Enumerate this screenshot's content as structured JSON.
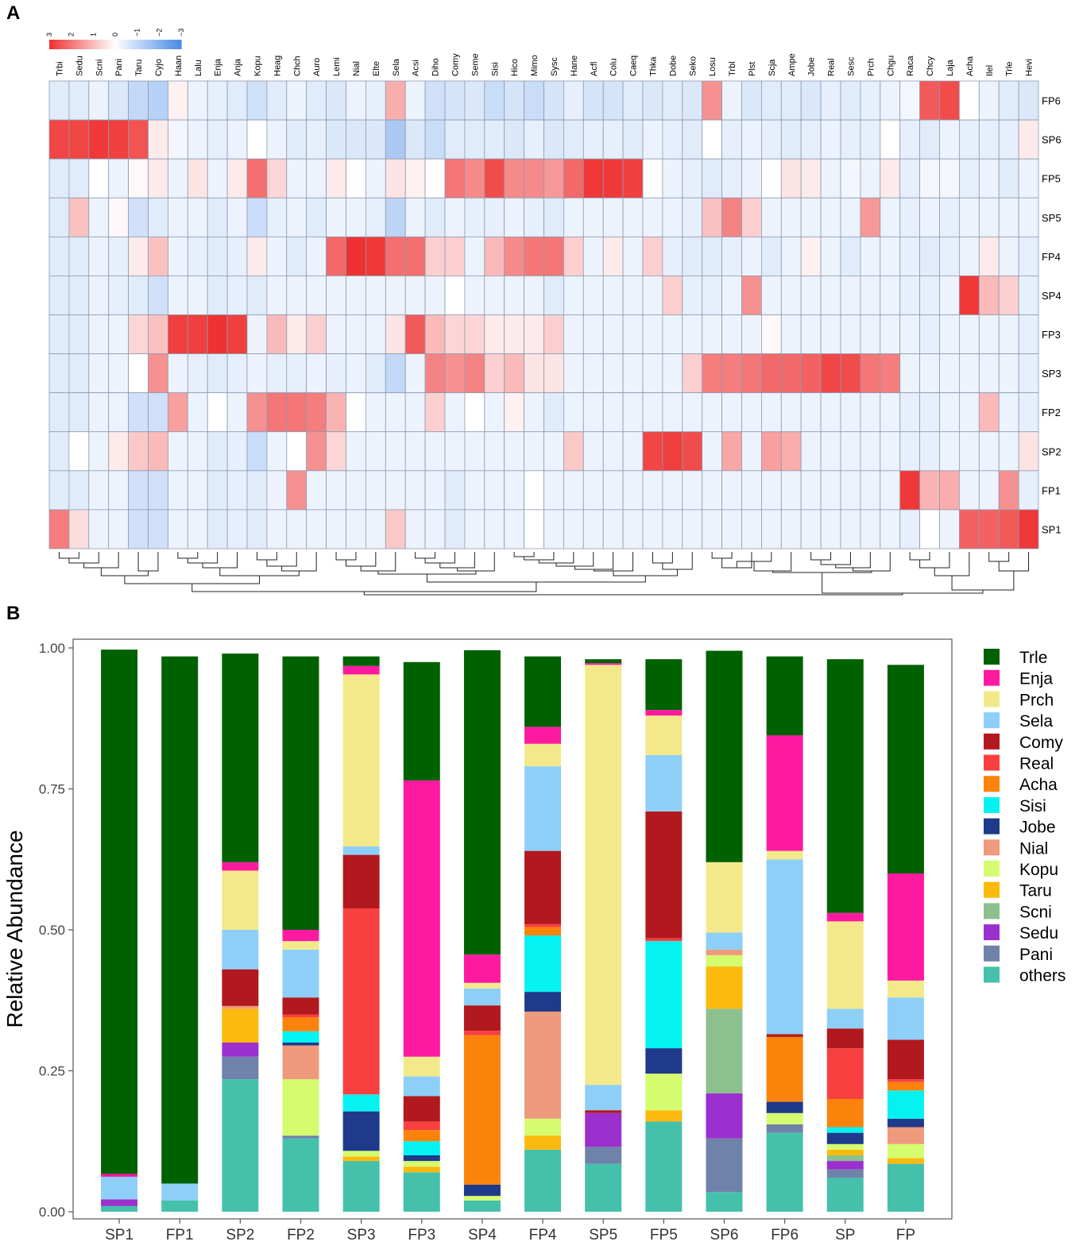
{
  "panels": {
    "a": "A",
    "b": "B"
  },
  "colors": {
    "heat_high": "#ef3131",
    "heat_mid": "#ffffff",
    "heat_low": "#4a8ae6",
    "grid": "#8e9ab0"
  },
  "chart_data": [
    {
      "type": "heatmap",
      "colorbar_ticks": [
        "3",
        "2",
        "1",
        "0",
        "−1",
        "−2",
        "−3"
      ],
      "columns": [
        "Trbi",
        "Sedu",
        "Scni",
        "Pani",
        "Taru",
        "Cyjo",
        "Haan",
        "Lalu",
        "Enja",
        "Anja",
        "Kopu",
        "Heag",
        "Chch",
        "Auro",
        "Lemi",
        "Nial",
        "Elte",
        "Sela",
        "Acsi",
        "Diho",
        "Comy",
        "Seme",
        "Sisi",
        "Hico",
        "Mimo",
        "Sysc",
        "Hane",
        "Acfl",
        "Colu",
        "Caeq",
        "Thka",
        "Dobe",
        "Seko",
        "Losu",
        "Trbl",
        "Plst",
        "Scja",
        "Ampe",
        "Jobe",
        "Real",
        "Sesc",
        "Prch",
        "Chgu",
        "Raca",
        "Chcy",
        "Laja",
        "Acha",
        "Ilel",
        "Trle",
        "Hevi"
      ],
      "rows": [
        "FP6",
        "SP6",
        "FP5",
        "SP5",
        "FP4",
        "SP4",
        "FP3",
        "SP3",
        "FP2",
        "SP2",
        "FP1",
        "SP1"
      ],
      "values": [
        [
          -0.5,
          -0.5,
          -0.3,
          -0.6,
          -1.0,
          -1.2,
          0.2,
          -0.3,
          -0.4,
          -0.5,
          -0.8,
          -0.5,
          -0.3,
          -0.5,
          -0.6,
          -0.3,
          -0.4,
          1.2,
          -0.3,
          -0.8,
          -0.7,
          -0.6,
          -0.9,
          -0.7,
          -0.9,
          -0.7,
          -0.4,
          -0.7,
          -0.7,
          -0.5,
          -0.6,
          -0.5,
          -0.6,
          1.6,
          -0.3,
          -0.6,
          -0.5,
          -0.5,
          -0.6,
          -0.4,
          -0.5,
          -0.4,
          -0.3,
          -0.2,
          2.4,
          2.6,
          0.0,
          -0.3,
          -0.5,
          -0.6
        ],
        [
          2.7,
          2.7,
          2.9,
          2.8,
          2.5,
          0.3,
          -0.2,
          -0.3,
          -0.4,
          -0.3,
          0.0,
          -0.3,
          -0.5,
          -0.4,
          -0.6,
          -0.6,
          -0.6,
          -1.4,
          -0.6,
          -0.9,
          -0.5,
          -0.5,
          -0.5,
          -0.6,
          -0.4,
          -0.6,
          -0.5,
          -0.4,
          -0.4,
          -0.5,
          -0.3,
          -0.4,
          -0.5,
          0.0,
          -0.4,
          -0.3,
          -0.4,
          -0.5,
          -0.4,
          -0.3,
          -0.4,
          -0.4,
          0.0,
          -0.4,
          -0.5,
          -0.3,
          -0.4,
          -0.4,
          -0.4,
          0.3
        ],
        [
          -0.5,
          -0.5,
          0.0,
          -0.3,
          0.1,
          0.3,
          -0.3,
          0.4,
          -0.3,
          0.3,
          2.1,
          0.6,
          -0.3,
          -0.3,
          0.3,
          0.0,
          -0.3,
          0.4,
          0.2,
          0.0,
          2.0,
          1.7,
          2.6,
          1.7,
          1.7,
          1.5,
          2.2,
          2.9,
          2.9,
          2.8,
          0.0,
          -0.3,
          -0.4,
          -0.5,
          -0.4,
          -0.3,
          0.0,
          0.4,
          0.3,
          -0.3,
          -0.2,
          -0.3,
          0.3,
          -0.4,
          -0.2,
          -0.2,
          -0.4,
          -0.3,
          -0.5,
          -0.3
        ],
        [
          -0.5,
          0.9,
          -0.3,
          0.1,
          -0.8,
          -0.5,
          -0.3,
          -0.3,
          -0.5,
          -0.3,
          -0.9,
          -0.4,
          -0.3,
          -0.5,
          -0.3,
          -0.3,
          -0.4,
          -1.1,
          -0.3,
          -0.5,
          -0.3,
          -0.4,
          -0.4,
          -0.3,
          -0.4,
          -0.5,
          -0.3,
          -0.3,
          -0.3,
          -0.3,
          -0.3,
          -0.3,
          -0.4,
          0.9,
          1.8,
          0.7,
          -0.3,
          -0.3,
          -0.3,
          -0.3,
          -0.3,
          1.5,
          -0.3,
          -0.4,
          -0.3,
          -0.4,
          -0.3,
          -0.3,
          -0.3,
          -0.3
        ],
        [
          -0.5,
          -0.5,
          -0.3,
          -0.4,
          0.3,
          0.9,
          -0.3,
          -0.4,
          -0.5,
          -0.4,
          0.3,
          -0.3,
          -0.5,
          -0.3,
          2.2,
          3.0,
          2.9,
          2.1,
          2.1,
          0.7,
          0.7,
          -0.3,
          1.0,
          1.7,
          2.0,
          2.0,
          0.7,
          -0.3,
          0.3,
          -0.3,
          0.7,
          -0.4,
          -0.5,
          -0.5,
          -0.4,
          -0.3,
          -0.5,
          -0.3,
          0.2,
          -0.3,
          -0.5,
          -0.3,
          -0.3,
          -0.4,
          -0.5,
          -0.4,
          -0.3,
          0.3,
          -0.3,
          -0.4
        ],
        [
          -0.5,
          -0.5,
          -0.3,
          -0.4,
          -0.5,
          -0.8,
          -0.3,
          -0.3,
          -0.5,
          -0.4,
          -0.5,
          -0.3,
          -0.3,
          -0.3,
          -0.3,
          -0.3,
          -0.3,
          -0.3,
          -0.3,
          -0.3,
          0.0,
          -0.3,
          -0.3,
          -0.3,
          -0.3,
          -0.5,
          -0.3,
          -0.3,
          -0.3,
          -0.3,
          -0.3,
          0.7,
          -0.4,
          -0.4,
          -0.3,
          1.6,
          -0.3,
          -0.3,
          -0.3,
          -0.3,
          -0.3,
          -0.3,
          -0.3,
          -0.4,
          -0.4,
          -0.3,
          2.9,
          1.0,
          0.7,
          -0.4
        ],
        [
          -0.5,
          -0.5,
          -0.3,
          -0.3,
          0.6,
          0.9,
          2.8,
          2.8,
          3.0,
          2.8,
          -0.3,
          1.0,
          0.3,
          0.7,
          -0.3,
          -0.3,
          -0.3,
          0.4,
          2.4,
          1.0,
          0.6,
          0.6,
          0.3,
          0.3,
          0.3,
          0.7,
          -0.3,
          -0.3,
          -0.3,
          -0.3,
          -0.3,
          -0.3,
          -0.3,
          -0.3,
          -0.3,
          -0.3,
          0.1,
          -0.3,
          -0.3,
          -0.3,
          -0.3,
          -0.3,
          -0.3,
          -0.3,
          -0.4,
          -0.3,
          -0.3,
          -0.3,
          -0.3,
          -0.4
        ],
        [
          -0.5,
          -0.5,
          -0.3,
          -0.3,
          0.0,
          1.6,
          -0.3,
          -0.4,
          -0.5,
          -0.4,
          -0.3,
          -0.4,
          -0.4,
          -0.3,
          -0.4,
          -0.3,
          -0.5,
          -1.0,
          -0.3,
          1.8,
          1.6,
          1.8,
          0.7,
          1.0,
          0.4,
          0.4,
          -0.3,
          -0.3,
          -0.3,
          -0.3,
          -0.3,
          -0.3,
          0.7,
          1.9,
          1.9,
          2.0,
          2.2,
          2.2,
          2.3,
          2.7,
          2.6,
          2.0,
          1.9,
          -0.3,
          -0.3,
          -0.3,
          -0.3,
          -0.3,
          -0.3,
          -0.4
        ],
        [
          -0.5,
          -0.5,
          -0.3,
          -0.3,
          -0.8,
          -0.8,
          1.4,
          -0.3,
          0.0,
          -0.3,
          1.6,
          2.0,
          2.0,
          1.9,
          1.1,
          0.0,
          -0.3,
          -0.3,
          -0.3,
          0.7,
          -0.3,
          0.0,
          -0.3,
          0.2,
          -0.3,
          -0.5,
          -0.3,
          -0.3,
          -0.3,
          -0.3,
          -0.3,
          -0.3,
          -0.3,
          -0.3,
          -0.3,
          -0.3,
          -0.3,
          -0.3,
          -0.3,
          -0.3,
          -0.3,
          -0.3,
          -0.3,
          -0.4,
          -0.4,
          -0.3,
          -0.3,
          1.0,
          -0.3,
          -0.4
        ],
        [
          -0.5,
          0.0,
          -0.3,
          0.3,
          0.8,
          1.0,
          -0.3,
          -0.3,
          -0.5,
          -0.4,
          -0.9,
          -0.3,
          0.0,
          1.6,
          0.6,
          -0.3,
          -0.3,
          -0.3,
          -0.3,
          -0.3,
          -0.3,
          -0.3,
          -0.3,
          -0.3,
          -0.3,
          -0.3,
          0.8,
          -0.3,
          -0.3,
          -0.3,
          2.7,
          2.8,
          2.6,
          -0.3,
          1.3,
          -0.3,
          1.4,
          1.2,
          -0.3,
          -0.3,
          -0.3,
          -0.3,
          -0.3,
          -0.4,
          -0.4,
          -0.3,
          -0.3,
          -0.3,
          -0.3,
          0.4
        ],
        [
          -0.5,
          -0.5,
          -0.3,
          -0.3,
          -0.8,
          -0.8,
          -0.3,
          -0.3,
          -0.5,
          -0.4,
          -0.5,
          -0.3,
          1.6,
          -0.3,
          -0.3,
          -0.3,
          -0.3,
          -0.3,
          -0.3,
          -0.3,
          -0.5,
          -0.3,
          -0.3,
          -0.3,
          0.0,
          -0.3,
          -0.3,
          -0.3,
          -0.3,
          -0.3,
          -0.3,
          -0.3,
          -0.3,
          -0.3,
          -0.3,
          -0.3,
          -0.3,
          -0.3,
          -0.3,
          -0.3,
          -0.3,
          -0.3,
          -0.3,
          2.9,
          1.1,
          1.2,
          -0.3,
          -0.3,
          1.6,
          -0.4
        ],
        [
          1.9,
          0.5,
          -0.3,
          -0.3,
          -0.8,
          -0.8,
          -0.3,
          -0.3,
          -0.5,
          -0.4,
          -0.5,
          -0.3,
          -0.3,
          -0.3,
          -0.3,
          -0.3,
          -0.3,
          0.8,
          -0.3,
          -0.3,
          -0.5,
          -0.3,
          -0.3,
          -0.3,
          0.0,
          -0.3,
          -0.3,
          -0.3,
          -0.3,
          -0.3,
          -0.3,
          -0.3,
          -0.3,
          -0.3,
          -0.3,
          -0.3,
          -0.3,
          -0.3,
          -0.3,
          -0.3,
          -0.3,
          -0.3,
          -0.3,
          -0.4,
          0.0,
          -0.3,
          2.3,
          2.3,
          2.4,
          2.9
        ]
      ]
    },
    {
      "type": "bar",
      "stacked": true,
      "ylabel": "Relative Abundance",
      "ylim": [
        0,
        1
      ],
      "yticks": [
        "0.00",
        "0.25",
        "0.50",
        "0.75",
        "1.00"
      ],
      "categories": [
        "SP1",
        "FP1",
        "SP2",
        "FP2",
        "SP3",
        "FP3",
        "SP4",
        "FP4",
        "SP5",
        "FP5",
        "SP6",
        "FP6",
        "SP",
        "FP"
      ],
      "legend_position": "right",
      "series": [
        {
          "name": "others",
          "color": "#45c0ab",
          "values": [
            0.01,
            0.02,
            0.235,
            0.13,
            0.09,
            0.07,
            0.02,
            0.11,
            0.085,
            0.16,
            0.035,
            0.14,
            0.06,
            0.085
          ]
        },
        {
          "name": "Pani",
          "color": "#6f83aa",
          "values": [
            0.0,
            0.0,
            0.04,
            0.005,
            0.0,
            0.0,
            0.0,
            0.0,
            0.03,
            0.0,
            0.095,
            0.015,
            0.015,
            0.0
          ]
        },
        {
          "name": "Sedu",
          "color": "#9b30ce",
          "values": [
            0.012,
            0.0,
            0.025,
            0.0,
            0.0,
            0.0,
            0.0,
            0.0,
            0.06,
            0.0,
            0.08,
            0.0,
            0.015,
            0.0
          ]
        },
        {
          "name": "Scni",
          "color": "#8dc08f",
          "values": [
            0.0,
            0.0,
            0.0,
            0.0,
            0.0,
            0.0,
            0.0,
            0.0,
            0.0,
            0.0,
            0.15,
            0.0,
            0.01,
            0.0
          ]
        },
        {
          "name": "Taru",
          "color": "#fcb90e",
          "values": [
            0.0,
            0.0,
            0.06,
            0.0,
            0.008,
            0.01,
            0.0,
            0.025,
            0.0,
            0.02,
            0.075,
            0.0,
            0.01,
            0.01
          ]
        },
        {
          "name": "Kopu",
          "color": "#d5fb6f",
          "values": [
            0.0,
            0.0,
            0.0,
            0.1,
            0.01,
            0.01,
            0.008,
            0.03,
            0.0,
            0.065,
            0.02,
            0.02,
            0.01,
            0.025
          ]
        },
        {
          "name": "Nial",
          "color": "#ef9a7c",
          "values": [
            0.0,
            0.0,
            0.005,
            0.06,
            0.0,
            0.0,
            0.0,
            0.19,
            0.0,
            0.0,
            0.01,
            0.0,
            0.0,
            0.03
          ]
        },
        {
          "name": "Jobe",
          "color": "#1f3a8a",
          "values": [
            0.0,
            0.0,
            0.0,
            0.005,
            0.07,
            0.01,
            0.02,
            0.035,
            0.0,
            0.045,
            0.0,
            0.02,
            0.02,
            0.015
          ]
        },
        {
          "name": "Sisi",
          "color": "#05f2f2",
          "values": [
            0.0,
            0.0,
            0.0,
            0.02,
            0.03,
            0.025,
            0.0,
            0.1,
            0.0,
            0.19,
            0.0,
            0.0,
            0.01,
            0.05
          ]
        },
        {
          "name": "Acha",
          "color": "#fb830c",
          "values": [
            0.0,
            0.0,
            0.0,
            0.025,
            0.0,
            0.02,
            0.265,
            0.015,
            0.0,
            0.0,
            0.0,
            0.115,
            0.05,
            0.015
          ]
        },
        {
          "name": "Real",
          "color": "#f94040",
          "values": [
            0.0,
            0.0,
            0.0,
            0.005,
            0.33,
            0.015,
            0.008,
            0.005,
            0.0,
            0.005,
            0.0,
            0.0,
            0.09,
            0.005
          ]
        },
        {
          "name": "Comy",
          "color": "#b1191e",
          "values": [
            0.0,
            0.0,
            0.065,
            0.03,
            0.095,
            0.045,
            0.045,
            0.13,
            0.005,
            0.225,
            0.0,
            0.005,
            0.035,
            0.07
          ]
        },
        {
          "name": "Sela",
          "color": "#8ecff8",
          "values": [
            0.04,
            0.03,
            0.07,
            0.085,
            0.015,
            0.035,
            0.03,
            0.15,
            0.045,
            0.1,
            0.03,
            0.31,
            0.035,
            0.075
          ]
        },
        {
          "name": "Prch",
          "color": "#f4e98a",
          "values": [
            0.0,
            0.0,
            0.105,
            0.015,
            0.305,
            0.035,
            0.01,
            0.04,
            0.745,
            0.07,
            0.125,
            0.015,
            0.155,
            0.03
          ]
        },
        {
          "name": "Enja",
          "color": "#fe1aa0",
          "values": [
            0.005,
            0.0,
            0.015,
            0.02,
            0.015,
            0.49,
            0.05,
            0.03,
            0.003,
            0.01,
            0.0,
            0.205,
            0.015,
            0.19
          ]
        },
        {
          "name": "Trle",
          "color": "#006100",
          "values": [
            0.93,
            0.935,
            0.37,
            0.485,
            0.017,
            0.21,
            0.54,
            0.125,
            0.007,
            0.09,
            0.375,
            0.14,
            0.45,
            0.37
          ]
        }
      ]
    }
  ]
}
